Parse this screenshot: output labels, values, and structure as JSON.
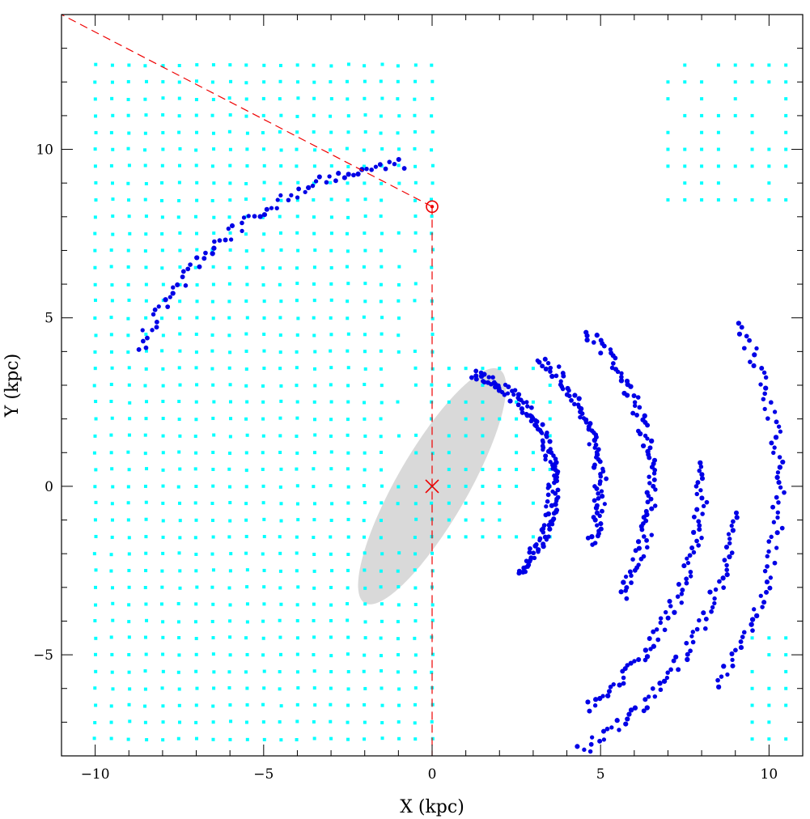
{
  "chart_data": {
    "type": "scatter",
    "title": "",
    "xlabel": "X (kpc)",
    "ylabel": "Y (kpc)",
    "xlim": [
      -11,
      11
    ],
    "ylim": [
      -8,
      14
    ],
    "x_ticks": [
      -10,
      -5,
      0,
      5,
      10
    ],
    "y_ticks": [
      -5,
      0,
      5,
      10
    ],
    "x_tick_labels": [
      "−10",
      "−5",
      "0",
      "5",
      "10"
    ],
    "y_tick_labels": [
      "−5",
      "0",
      "5",
      "10"
    ],
    "grid": false,
    "colors": {
      "grid_points": "#00ffff",
      "tracer_points": "#0000e6",
      "bar": "#d9d9d9",
      "markers": "#ee0000"
    },
    "bar_ellipse": {
      "center": [
        0,
        0
      ],
      "semi_major": 4.0,
      "semi_minor": 1.05,
      "angle_deg_from_x": 60
    },
    "galactic_center_marker": {
      "x": 0,
      "y": 0,
      "symbol": "cross"
    },
    "sun_marker": {
      "x": 0,
      "y": 8.3,
      "symbol": "sun"
    },
    "sight_lines": [
      {
        "from": [
          0,
          8.3
        ],
        "to": [
          -11,
          14
        ],
        "style": "dashed"
      },
      {
        "from": [
          0,
          8.3
        ],
        "to": [
          0,
          -8
        ],
        "style": "dashed"
      }
    ],
    "series": [
      {
        "role": "outer-grid",
        "marker": "square",
        "grid": {
          "x_start": -10,
          "x_step": 0.5,
          "y_step": 0.5,
          "y_min": -7.5,
          "y_max": 12.8,
          "columns_x_max": 0,
          "extra_blocks": [
            {
              "x": [
                7,
                10.5
              ],
              "y": [
                8.5,
                12.8
              ]
            },
            {
              "x": [
                9.5,
                10.5
              ],
              "y": [
                -7.5,
                -4.5
              ]
            },
            {
              "x": [
                0.5,
                3.5
              ],
              "y": [
                -1.5,
                3.5
              ]
            }
          ]
        }
      },
      {
        "role": "arm-tracers",
        "marker": "circle",
        "arcs": [
          {
            "r": 10.3,
            "theta": [
              -35,
              28
            ],
            "y_scale": 1.0
          },
          {
            "r": 8.0,
            "theta": [
              -55,
              5
            ],
            "y_scale": 1.0
          },
          {
            "r": 6.5,
            "theta": [
              -30,
              45
            ],
            "y_scale": 1.0
          },
          {
            "r": 5.0,
            "theta": [
              -20,
              50
            ],
            "y_scale": 1.0
          },
          {
            "r": 3.6,
            "theta": [
              -45,
              70
            ],
            "y_scale": 1.0
          },
          {
            "r": 9.0,
            "theta": [
              -70,
              -5
            ],
            "y_scale": 1.0
          },
          {
            "r": 9.6,
            "theta": [
              95,
              155
            ],
            "y_scale": 1.0
          }
        ]
      }
    ]
  }
}
